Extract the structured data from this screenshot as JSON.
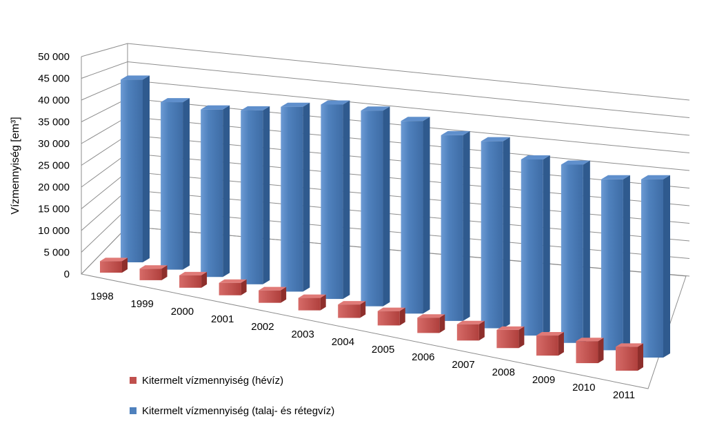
{
  "chart_data": {
    "type": "bar",
    "title": "",
    "xlabel": "",
    "ylabel": "Vízmennyiség [em³]",
    "ylim": [
      0,
      50000
    ],
    "y_ticks": [
      "0",
      "5 000",
      "10 000",
      "15 000",
      "20 000",
      "25 000",
      "30 000",
      "35 000",
      "40 000",
      "45 000",
      "50 000"
    ],
    "grid": true,
    "legend_position": "bottom-left",
    "categories": [
      "1998",
      "1999",
      "2000",
      "2001",
      "2002",
      "2003",
      "2004",
      "2005",
      "2006",
      "2007",
      "2008",
      "2009",
      "2010",
      "2011"
    ],
    "series": [
      {
        "name": "Kitermelt vízmennyiség (hévíz)",
        "color": "#C0504D",
        "values": [
          1200,
          1200,
          1300,
          1300,
          1300,
          1300,
          1400,
          1500,
          1600,
          1700,
          1900,
          2100,
          2300,
          2500
        ]
      },
      {
        "name": "Kitermelt vízmennyiség (talaj- és rétegvíz)",
        "color": "#4F81BD",
        "values": [
          42000,
          38500,
          38500,
          40000,
          42500,
          44700,
          45000,
          44300,
          42700,
          43000,
          40500,
          41000,
          39300,
          41000
        ]
      }
    ]
  }
}
